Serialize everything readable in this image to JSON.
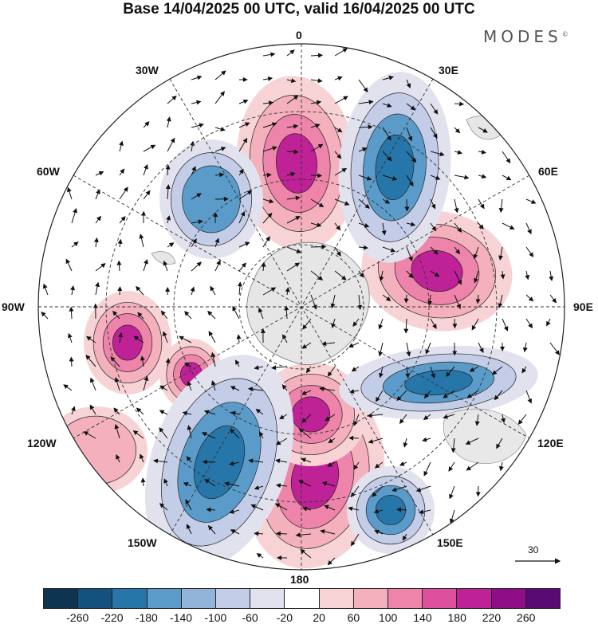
{
  "title": "Base 14/04/2025 00 UTC, valid 16/04/2025 00 UTC",
  "brand": {
    "name": "MODES",
    "mark": "©"
  },
  "longitude_labels": {
    "top": "0",
    "bottom": "180",
    "left": "90W",
    "right": "90E",
    "30W": "30W",
    "60W": "60W",
    "120W": "120W",
    "150W": "150W",
    "30E": "30E",
    "60E": "60E",
    "120E": "120E",
    "150E": "150E"
  },
  "vector_key": {
    "value": "30"
  },
  "colorbar": {
    "colors": [
      "#0d3552",
      "#13517f",
      "#2676a9",
      "#5a9bc9",
      "#93b4d9",
      "#c3cde7",
      "#e2e2ef",
      "#ffffff",
      "#f7d3d6",
      "#f4b0bd",
      "#ee84aa",
      "#de4f9e",
      "#bf2196",
      "#8f0e87",
      "#5a0a73"
    ],
    "tick_labels": [
      "-260",
      "-220",
      "-180",
      "-140",
      "-100",
      "-60",
      "-20",
      "20",
      "60",
      "100",
      "140",
      "180",
      "220",
      "260"
    ]
  },
  "map": {
    "projection": "south polar stereographic",
    "field_colors": {
      "pos_light": "#f7d3d6",
      "pos_mid": "#f4b0bd",
      "pos_strong": "#ee84aa",
      "pos_max": "#bf2196",
      "neg_light": "#e2e2ef",
      "neg_mid": "#c3cde7",
      "neg_strong": "#5a9bc9",
      "neg_max": "#2676a9",
      "land": "#e6e6e6"
    }
  }
}
